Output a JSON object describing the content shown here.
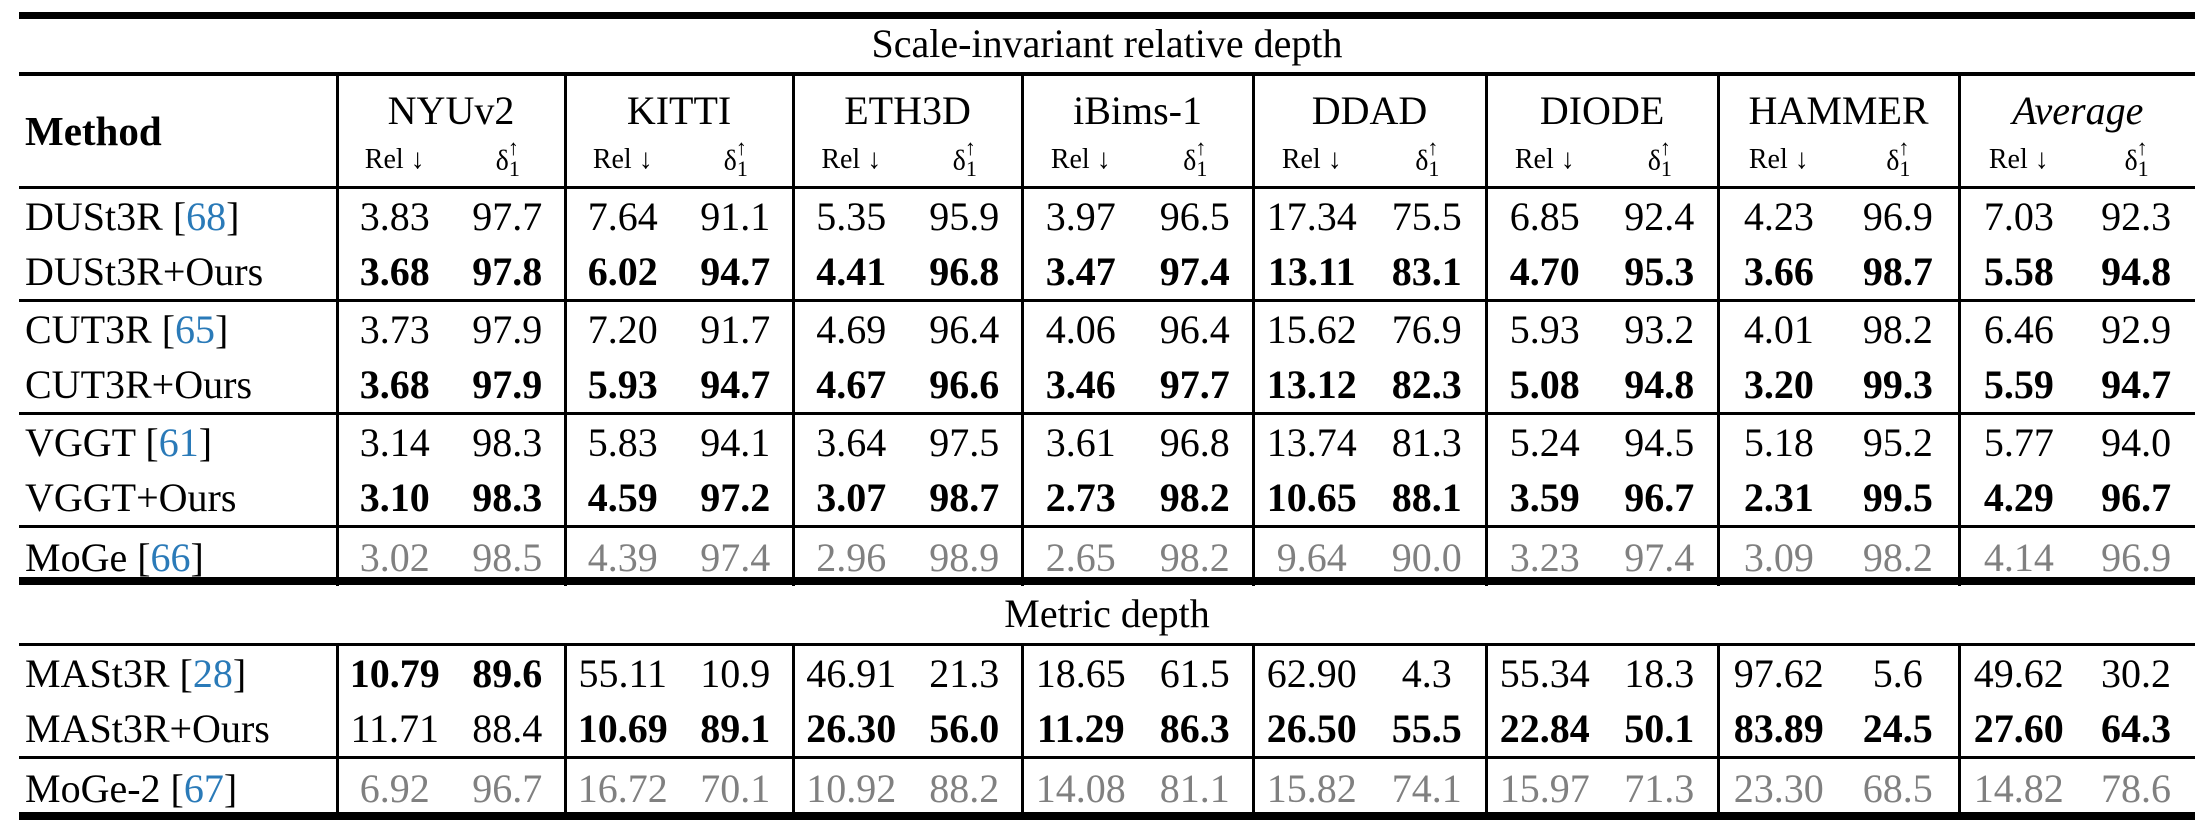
{
  "colors": {
    "citation": "#2a7ab8",
    "reference_values": "#808080"
  },
  "header": {
    "method_label": "Method",
    "datasets": [
      "NYUv2",
      "KITTI",
      "ETH3D",
      "iBims-1",
      "DDAD",
      "DIODE",
      "HAMMER",
      "Average"
    ],
    "metrics": {
      "rel": "Rel ↓",
      "delta": "δ",
      "delta_sub": "1",
      "delta_sup": "↑"
    }
  },
  "sections": [
    {
      "title": "Scale-invariant relative depth",
      "groups": [
        [
          {
            "method": "DUSt3R",
            "cite": "68",
            "gray": false,
            "bold_cells": [],
            "values": [
              "3.83",
              "97.7",
              "7.64",
              "91.1",
              "5.35",
              "95.9",
              "3.97",
              "96.5",
              "17.34",
              "75.5",
              "6.85",
              "92.4",
              "4.23",
              "96.9",
              "7.03",
              "92.3"
            ]
          },
          {
            "method": "DUSt3R+Ours",
            "cite": null,
            "gray": false,
            "bold_cells": [
              0,
              1,
              2,
              3,
              4,
              5,
              6,
              7,
              8,
              9,
              10,
              11,
              12,
              13,
              14,
              15
            ],
            "values": [
              "3.68",
              "97.8",
              "6.02",
              "94.7",
              "4.41",
              "96.8",
              "3.47",
              "97.4",
              "13.11",
              "83.1",
              "4.70",
              "95.3",
              "3.66",
              "98.7",
              "5.58",
              "94.8"
            ]
          }
        ],
        [
          {
            "method": "CUT3R",
            "cite": "65",
            "gray": false,
            "bold_cells": [],
            "values": [
              "3.73",
              "97.9",
              "7.20",
              "91.7",
              "4.69",
              "96.4",
              "4.06",
              "96.4",
              "15.62",
              "76.9",
              "5.93",
              "93.2",
              "4.01",
              "98.2",
              "6.46",
              "92.9"
            ]
          },
          {
            "method": "CUT3R+Ours",
            "cite": null,
            "gray": false,
            "bold_cells": [
              0,
              1,
              2,
              3,
              4,
              5,
              6,
              7,
              8,
              9,
              10,
              11,
              12,
              13,
              14,
              15
            ],
            "values": [
              "3.68",
              "97.9",
              "5.93",
              "94.7",
              "4.67",
              "96.6",
              "3.46",
              "97.7",
              "13.12",
              "82.3",
              "5.08",
              "94.8",
              "3.20",
              "99.3",
              "5.59",
              "94.7"
            ]
          }
        ],
        [
          {
            "method": "VGGT",
            "cite": "61",
            "gray": false,
            "bold_cells": [],
            "values": [
              "3.14",
              "98.3",
              "5.83",
              "94.1",
              "3.64",
              "97.5",
              "3.61",
              "96.8",
              "13.74",
              "81.3",
              "5.24",
              "94.5",
              "5.18",
              "95.2",
              "5.77",
              "94.0"
            ]
          },
          {
            "method": "VGGT+Ours",
            "cite": null,
            "gray": false,
            "bold_cells": [
              0,
              1,
              2,
              3,
              4,
              5,
              6,
              7,
              8,
              9,
              10,
              11,
              12,
              13,
              14,
              15
            ],
            "values": [
              "3.10",
              "98.3",
              "4.59",
              "97.2",
              "3.07",
              "98.7",
              "2.73",
              "98.2",
              "10.65",
              "88.1",
              "3.59",
              "96.7",
              "2.31",
              "99.5",
              "4.29",
              "96.7"
            ]
          }
        ],
        [
          {
            "method": "MoGe",
            "cite": "66",
            "gray": true,
            "bold_cells": [],
            "values": [
              "3.02",
              "98.5",
              "4.39",
              "97.4",
              "2.96",
              "98.9",
              "2.65",
              "98.2",
              "9.64",
              "90.0",
              "3.23",
              "97.4",
              "3.09",
              "98.2",
              "4.14",
              "96.9"
            ]
          }
        ]
      ]
    },
    {
      "title": "Metric depth",
      "groups": [
        [
          {
            "method": "MASt3R",
            "cite": "28",
            "gray": false,
            "bold_cells": [
              0,
              1
            ],
            "values": [
              "10.79",
              "89.6",
              "55.11",
              "10.9",
              "46.91",
              "21.3",
              "18.65",
              "61.5",
              "62.90",
              "4.3",
              "55.34",
              "18.3",
              "97.62",
              "5.6",
              "49.62",
              "30.2"
            ]
          },
          {
            "method": "MASt3R+Ours",
            "cite": null,
            "gray": false,
            "bold_cells": [
              2,
              3,
              4,
              5,
              6,
              7,
              8,
              9,
              10,
              11,
              12,
              13,
              14,
              15
            ],
            "values": [
              "11.71",
              "88.4",
              "10.69",
              "89.1",
              "26.30",
              "56.0",
              "11.29",
              "86.3",
              "26.50",
              "55.5",
              "22.84",
              "50.1",
              "83.89",
              "24.5",
              "27.60",
              "64.3"
            ]
          }
        ],
        [
          {
            "method": "MoGe-2",
            "cite": "67",
            "gray": true,
            "bold_cells": [],
            "values": [
              "6.92",
              "96.7",
              "16.72",
              "70.1",
              "10.92",
              "88.2",
              "14.08",
              "81.1",
              "15.82",
              "74.1",
              "15.97",
              "71.3",
              "23.30",
              "68.5",
              "14.82",
              "78.6"
            ]
          }
        ]
      ]
    }
  ]
}
